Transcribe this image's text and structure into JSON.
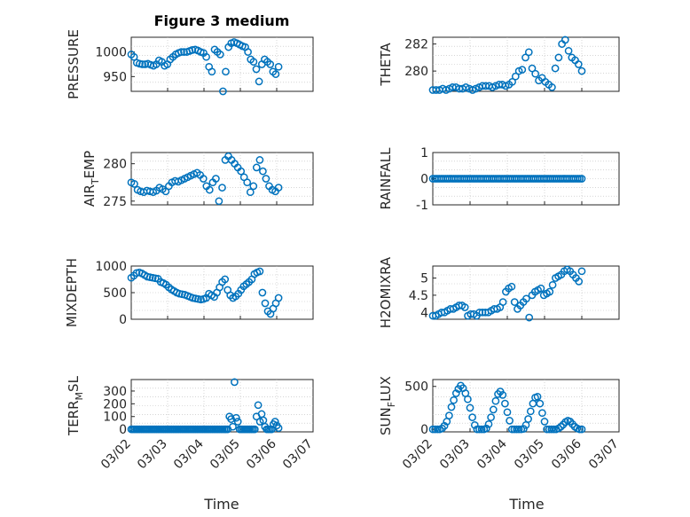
{
  "figure": {
    "title": "Figure 3 medium",
    "xlabel": "Time",
    "marker_color": "#0072BD"
  },
  "chart_data": [
    {
      "type": "scatter",
      "name": "PRESSURE",
      "ylabel": [
        "PRESSURE"
      ],
      "ylim": [
        920,
        1030
      ],
      "yticks": [
        950,
        1000
      ],
      "xlim": [
        0,
        5
      ],
      "xticks": [],
      "y": [
        995,
        990,
        978,
        976,
        975,
        975,
        976,
        974,
        972,
        975,
        983,
        980,
        972,
        975,
        985,
        990,
        995,
        998,
        1000,
        1000,
        1000,
        1002,
        1004,
        1005,
        1003,
        1000,
        998,
        990,
        970,
        960,
        1005,
        1000,
        995,
        920,
        960,
        1010,
        1018,
        1020,
        1018,
        1015,
        1012,
        1010,
        1000,
        985,
        980,
        965,
        940,
        975,
        985,
        980,
        975,
        960,
        955,
        970
      ]
    },
    {
      "type": "scatter",
      "name": "THETA",
      "ylabel": [
        "THETA"
      ],
      "ylim": [
        278.5,
        282.5
      ],
      "yticks": [
        280,
        282
      ],
      "xlim": [
        0,
        5
      ],
      "xticks": [],
      "y": [
        278.6,
        278.6,
        278.6,
        278.7,
        278.6,
        278.7,
        278.8,
        278.8,
        278.7,
        278.7,
        278.8,
        278.7,
        278.6,
        278.7,
        278.8,
        278.9,
        278.9,
        278.9,
        278.8,
        278.9,
        279.0,
        279.0,
        278.9,
        279.0,
        279.2,
        279.6,
        280.0,
        280.1,
        281.0,
        281.4,
        280.2,
        279.8,
        279.3,
        279.5,
        279.2,
        279.0,
        278.8,
        280.2,
        281.0,
        282.0,
        282.3,
        281.5,
        281.0,
        280.8,
        280.5,
        280.0
      ]
    },
    {
      "type": "scatter",
      "name": "AIR_TEMP",
      "ylabel": [
        "AIR",
        "T",
        "EMP"
      ],
      "ylim": [
        274.5,
        281.5
      ],
      "yticks": [
        275,
        280
      ],
      "xlim": [
        0,
        5
      ],
      "xticks": [],
      "y": [
        277.5,
        277.3,
        276.5,
        276.3,
        276.2,
        276.4,
        276.3,
        276.2,
        276.4,
        276.8,
        276.6,
        276.3,
        277.0,
        277.5,
        277.7,
        277.6,
        277.8,
        278.0,
        278.2,
        278.4,
        278.6,
        278.8,
        278.5,
        278.0,
        277.0,
        276.5,
        277.5,
        278.0,
        275.0,
        276.8,
        280.5,
        281.0,
        280.5,
        280.0,
        279.5,
        279.0,
        278.2,
        277.5,
        276.2,
        277.0,
        279.5,
        280.5,
        279.0,
        278.0,
        277.0,
        276.5,
        276.3,
        276.8
      ]
    },
    {
      "type": "scatter",
      "name": "RAINFALL",
      "ylabel": [
        "RAINFALL"
      ],
      "ylim": [
        -1,
        1
      ],
      "yticks": [
        -1,
        0,
        1
      ],
      "xlim": [
        0,
        5
      ],
      "xticks": [],
      "y": [
        0,
        0,
        0,
        0,
        0,
        0,
        0,
        0,
        0,
        0,
        0,
        0,
        0,
        0,
        0,
        0,
        0,
        0,
        0,
        0,
        0,
        0,
        0,
        0,
        0,
        0,
        0,
        0,
        0,
        0,
        0,
        0,
        0,
        0,
        0,
        0,
        0,
        0,
        0,
        0,
        0,
        0,
        0,
        0,
        0,
        0,
        0,
        0,
        0,
        0,
        0,
        0,
        0,
        0,
        0,
        0,
        0,
        0,
        0,
        0,
        0,
        0,
        0,
        0,
        0,
        0,
        0,
        0,
        0,
        0,
        0,
        0
      ]
    },
    {
      "type": "scatter",
      "name": "MIXDEPTH",
      "ylabel": [
        "MIXDEPTH"
      ],
      "ylim": [
        0,
        1000
      ],
      "yticks": [
        0,
        500,
        1000
      ],
      "xlim": [
        0,
        5
      ],
      "xticks": [],
      "y": [
        780,
        820,
        870,
        880,
        860,
        830,
        800,
        790,
        780,
        770,
        760,
        700,
        680,
        650,
        600,
        560,
        530,
        500,
        480,
        470,
        460,
        440,
        420,
        400,
        390,
        380,
        370,
        380,
        400,
        480,
        450,
        420,
        500,
        600,
        700,
        750,
        550,
        450,
        400,
        430,
        480,
        550,
        620,
        660,
        700,
        750,
        850,
        880,
        900,
        500,
        300,
        150,
        100,
        200,
        300,
        400
      ]
    },
    {
      "type": "scatter",
      "name": "H2OMIXRA",
      "ylabel": [
        "H2OMIXRA"
      ],
      "ylim": [
        3.8,
        5.35
      ],
      "yticks": [
        4,
        4.5,
        5
      ],
      "xlim": [
        0,
        5
      ],
      "xticks": [],
      "y": [
        3.9,
        3.9,
        3.95,
        4.0,
        4.0,
        4.05,
        4.1,
        4.1,
        4.15,
        4.2,
        4.2,
        4.15,
        3.9,
        3.95,
        3.95,
        3.9,
        4.0,
        4.0,
        4.0,
        4.0,
        4.05,
        4.1,
        4.1,
        4.15,
        4.3,
        4.6,
        4.7,
        4.75,
        4.3,
        4.1,
        4.2,
        4.3,
        4.4,
        3.85,
        4.5,
        4.6,
        4.65,
        4.7,
        4.5,
        4.55,
        4.6,
        4.8,
        5.0,
        5.05,
        5.1,
        5.2,
        5.25,
        5.2,
        5.1,
        5.0,
        4.9,
        5.2
      ]
    },
    {
      "type": "scatter",
      "name": "TERR_MSL",
      "ylabel": [
        "TERR",
        "M",
        "SL"
      ],
      "ylim": [
        -20,
        390
      ],
      "yticks": [
        0,
        100,
        200,
        300
      ],
      "xlim": [
        0,
        5
      ],
      "xticks": [
        "03/02",
        "03/03",
        "03/04",
        "03/05",
        "03/06",
        "03/07"
      ],
      "y": [
        0,
        0,
        0,
        0,
        0,
        0,
        0,
        0,
        0,
        0,
        0,
        0,
        0,
        0,
        0,
        0,
        0,
        0,
        0,
        0,
        0,
        0,
        0,
        0,
        0,
        0,
        0,
        0,
        0,
        0,
        0,
        0,
        0,
        0,
        0,
        0,
        0,
        0,
        0,
        0,
        0,
        0,
        0,
        0,
        0,
        0,
        0,
        0,
        0,
        0,
        0,
        0,
        0,
        0,
        0,
        0,
        0,
        0,
        100,
        80,
        20,
        370,
        90,
        60,
        0,
        0,
        0,
        0,
        0,
        0,
        0,
        0,
        0,
        0,
        100,
        190,
        60,
        120,
        70,
        20,
        0,
        0,
        0,
        0,
        40,
        60,
        30,
        10
      ]
    },
    {
      "type": "scatter",
      "name": "SUN_FLUX",
      "ylabel": [
        "SUN",
        "F",
        "LUX"
      ],
      "ylim": [
        -30,
        580
      ],
      "yticks": [
        0,
        500
      ],
      "xlim": [
        0,
        5
      ],
      "xticks": [
        "03/02",
        "03/03",
        "03/04",
        "03/05",
        "03/06",
        "03/07"
      ],
      "y": [
        0,
        0,
        0,
        0,
        10,
        40,
        90,
        160,
        260,
        340,
        420,
        470,
        510,
        480,
        420,
        350,
        250,
        140,
        50,
        0,
        0,
        0,
        0,
        10,
        60,
        140,
        230,
        330,
        410,
        440,
        400,
        300,
        200,
        100,
        0,
        0,
        0,
        0,
        0,
        5,
        50,
        120,
        210,
        300,
        370,
        380,
        300,
        190,
        90,
        0,
        0,
        0,
        0,
        0,
        10,
        30,
        55,
        85,
        100,
        90,
        60,
        30,
        10,
        0,
        0
      ]
    }
  ]
}
